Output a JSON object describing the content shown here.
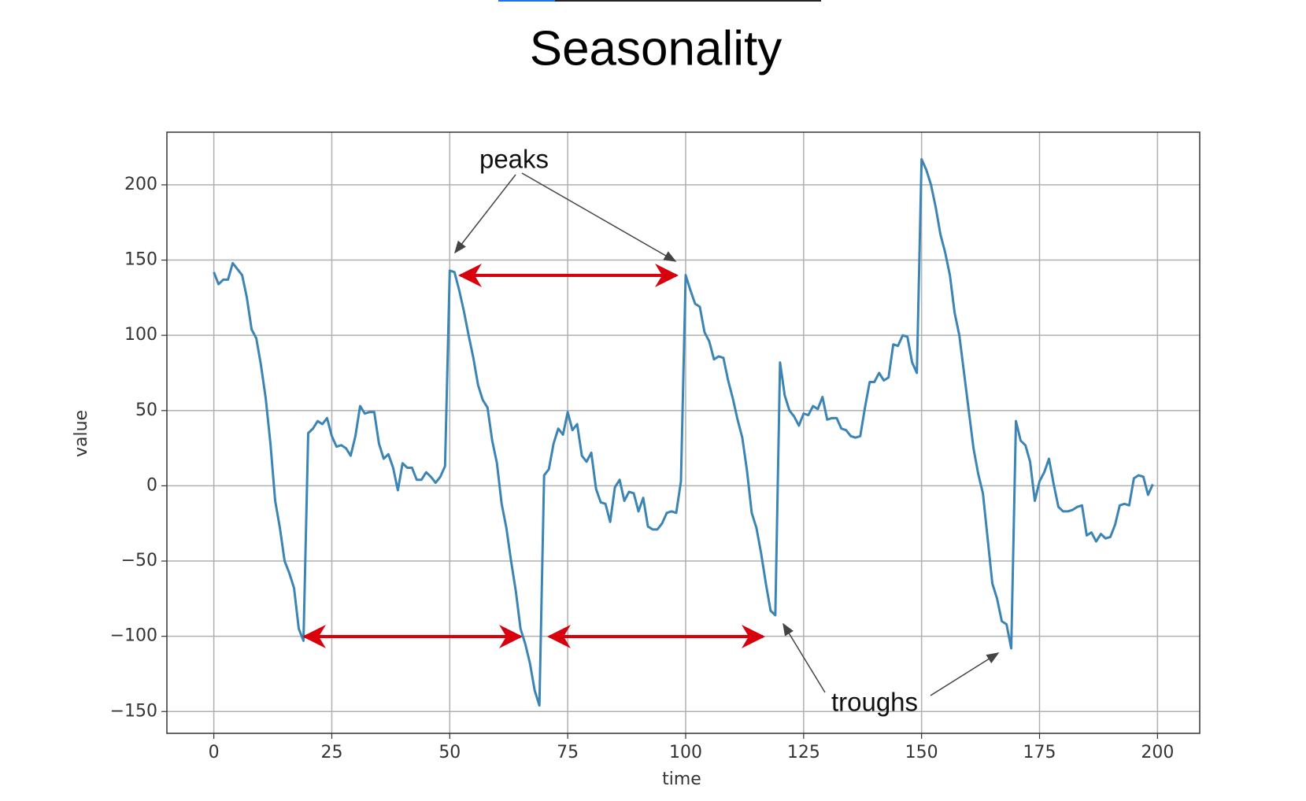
{
  "chart_data": {
    "type": "line",
    "title": "Seasonality",
    "x_label": "time",
    "y_label": "value",
    "annotations": [
      "peaks",
      "troughs"
    ],
    "x": [
      0,
      1,
      2,
      3,
      4,
      5,
      6,
      7,
      8,
      9,
      10,
      11,
      12,
      13,
      14,
      15,
      16,
      17,
      18,
      19,
      20,
      21,
      22,
      23,
      24,
      25,
      26,
      27,
      28,
      29,
      30,
      31,
      32,
      33,
      34,
      35,
      36,
      37,
      38,
      39,
      40,
      41,
      42,
      43,
      44,
      45,
      46,
      47,
      48,
      49,
      50,
      51,
      52,
      53,
      54,
      55,
      56,
      57,
      58,
      59,
      60,
      61,
      62,
      63,
      64,
      65,
      66,
      67,
      68,
      69,
      70,
      71,
      72,
      73,
      74,
      75,
      76,
      77,
      78,
      79,
      80,
      81,
      82,
      83,
      84,
      85,
      86,
      87,
      88,
      89,
      90,
      91,
      92,
      93,
      94,
      95,
      96,
      97,
      98,
      99,
      100,
      101,
      102,
      103,
      104,
      105,
      106,
      107,
      108,
      109,
      110,
      111,
      112,
      113,
      114,
      115,
      116,
      117,
      118,
      119,
      120,
      121,
      122,
      123,
      124,
      125,
      126,
      127,
      128,
      129,
      130,
      131,
      132,
      133,
      134,
      135,
      136,
      137,
      138,
      139,
      140,
      141,
      142,
      143,
      144,
      145,
      146,
      147,
      148,
      149,
      150,
      151,
      152,
      153,
      154,
      155,
      156,
      157,
      158,
      159,
      160,
      161,
      162,
      163,
      164,
      165,
      166,
      167,
      168,
      169,
      170,
      171,
      172,
      173,
      174,
      175,
      176,
      177,
      178,
      179,
      180,
      181,
      182,
      183,
      184,
      185,
      186,
      187,
      188,
      189,
      190,
      191,
      192,
      193,
      194,
      195,
      196,
      197,
      198,
      199
    ],
    "series": [
      {
        "color": "#3b84b4",
        "values": [
          142,
          134,
          137,
          137,
          148,
          144,
          140,
          125,
          104,
          98,
          80,
          58,
          28,
          -10,
          -28,
          -50,
          -58,
          -68,
          -95,
          -103,
          35,
          38,
          43,
          41,
          45,
          33,
          26,
          27,
          25,
          20,
          33,
          53,
          48,
          49,
          49,
          28,
          18,
          21,
          12,
          -3,
          15,
          12,
          12,
          4,
          4,
          9,
          6,
          2,
          6,
          13,
          143,
          142,
          130,
          116,
          100,
          85,
          67,
          57,
          52,
          30,
          15,
          -12,
          -28,
          -50,
          -70,
          -95,
          -105,
          -118,
          -136,
          -146,
          7,
          11,
          28,
          38,
          34,
          49,
          37,
          41,
          20,
          16,
          22,
          -2,
          -11,
          -12,
          -24,
          -1,
          4,
          -10,
          -4,
          -5,
          -17,
          -8,
          -27,
          -29,
          -29,
          -25,
          -18,
          -17,
          -18,
          3,
          140,
          130,
          121,
          119,
          102,
          96,
          84,
          86,
          85,
          70,
          58,
          44,
          32,
          10,
          -18,
          -28,
          -45,
          -65,
          -83,
          -86,
          82,
          60,
          50,
          46,
          40,
          48,
          47,
          53,
          51,
          59,
          44,
          45,
          45,
          38,
          37,
          33,
          32,
          33,
          52,
          69,
          69,
          75,
          70,
          72,
          94,
          93,
          100,
          99,
          82,
          75,
          217,
          210,
          200,
          185,
          167,
          155,
          140,
          115,
          100,
          75,
          50,
          25,
          8,
          -5,
          -35,
          -65,
          -75,
          -90,
          -92,
          -108,
          43,
          30,
          27,
          16,
          -10,
          3,
          9,
          18,
          1,
          -14,
          -17,
          -17,
          -16,
          -14,
          -13,
          -33,
          -31,
          -37,
          -32,
          -35,
          -34,
          -26,
          -13,
          -12,
          -13,
          5,
          7,
          6,
          -6,
          1
        ]
      }
    ],
    "xlim": [
      -9.95,
      208.95
    ],
    "ylim": [
      -164.5,
      235
    ],
    "xticks": [
      0,
      25,
      50,
      75,
      100,
      125,
      150,
      175,
      200
    ],
    "yticks": [
      {
        "value": -150,
        "label": "−150"
      },
      {
        "value": -100,
        "label": "−100"
      },
      {
        "value": -50,
        "label": "−50"
      },
      0,
      50,
      100,
      150,
      200
    ],
    "grid": true
  }
}
